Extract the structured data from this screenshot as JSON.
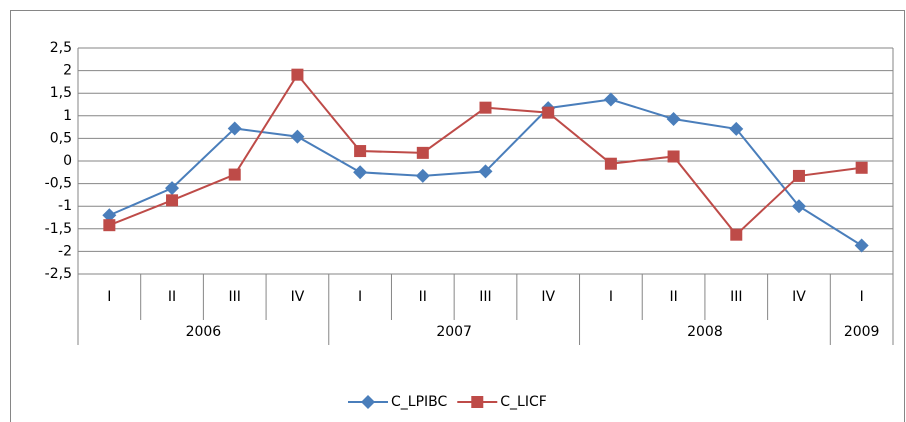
{
  "chart_data": {
    "type": "line",
    "categories": [
      "I",
      "II",
      "III",
      "IV",
      "I",
      "II",
      "III",
      "IV",
      "I",
      "II",
      "III",
      "IV",
      "I"
    ],
    "years": [
      "2006",
      "2007",
      "2008",
      "2009"
    ],
    "series": [
      {
        "name": "C_LPIBC",
        "color": "#4a7ebb",
        "marker": "diamond",
        "values": [
          -1.2,
          -0.6,
          0.72,
          0.54,
          -0.25,
          -0.33,
          -0.23,
          1.17,
          1.36,
          0.93,
          0.71,
          -1.0,
          -1.87
        ]
      },
      {
        "name": "C_LICF",
        "color": "#be4b48",
        "marker": "square",
        "values": [
          -1.42,
          -0.87,
          -0.3,
          1.91,
          0.22,
          0.18,
          1.18,
          1.07,
          -0.06,
          0.1,
          -1.63,
          -0.33,
          -0.15
        ]
      }
    ],
    "ylim": [
      -2.5,
      2.5
    ],
    "yticks": [
      {
        "value": -2.5,
        "label": "-2,5"
      },
      -2,
      {
        "value": -1.5,
        "label": "-1,5"
      },
      -1,
      {
        "value": -0.5,
        "label": "-0,5"
      },
      0,
      {
        "value": 0.5,
        "label": "0,5"
      },
      1,
      {
        "value": 1.5,
        "label": "1,5"
      },
      2,
      {
        "value": 2.5,
        "label": "2,5"
      }
    ],
    "grid": true,
    "legend": "bottom"
  }
}
